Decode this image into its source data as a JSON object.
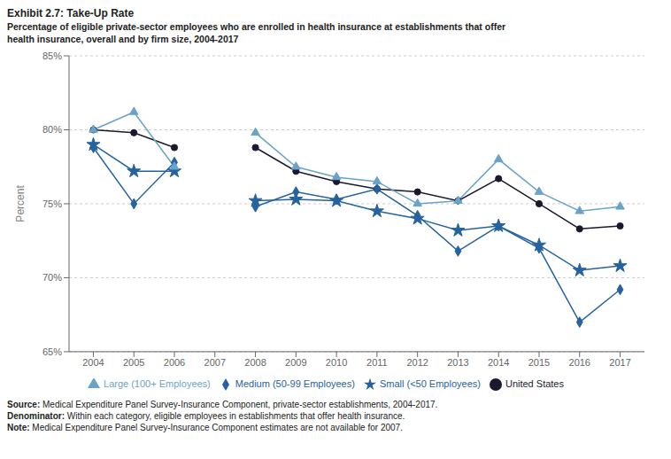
{
  "chart_data": {
    "type": "line",
    "title": "Exhibit 2.7: Take-Up Rate",
    "subtitle": [
      "Percentage of eligible private-sector employees who are enrolled in health insurance at establishments that offer",
      "health insurance, overall and by firm size, 2004-2017"
    ],
    "x": [
      2004,
      2005,
      2006,
      2007,
      2008,
      2009,
      2010,
      2011,
      2012,
      2013,
      2014,
      2015,
      2016,
      2017
    ],
    "series": [
      {
        "name": "United States",
        "color": "#1a1a2e",
        "marker": "circle",
        "values": [
          80.0,
          79.8,
          78.8,
          null,
          78.8,
          77.2,
          76.5,
          76.0,
          75.8,
          75.2,
          76.7,
          75.0,
          73.3,
          73.5
        ]
      },
      {
        "name": "Small (<50 Employees)",
        "color": "#2563a0",
        "marker": "star",
        "values": [
          79.0,
          77.2,
          77.2,
          null,
          75.2,
          75.3,
          75.2,
          74.5,
          74.0,
          73.2,
          73.5,
          72.2,
          70.5,
          70.8
        ]
      },
      {
        "name": "Medium (50-99 Employees)",
        "color": "#2563a0",
        "marker": "diamond",
        "values": [
          78.8,
          75.0,
          77.8,
          null,
          74.8,
          75.8,
          75.3,
          76.0,
          74.2,
          71.8,
          73.5,
          72.0,
          67.0,
          69.2
        ]
      },
      {
        "name": "Large (100+ Employees)",
        "color": "#6ba3c8",
        "marker": "triangle",
        "values": [
          80.0,
          81.2,
          77.5,
          null,
          79.8,
          77.5,
          76.8,
          76.5,
          75.0,
          75.2,
          78.0,
          75.8,
          74.5,
          74.8
        ]
      }
    ],
    "xlim": [
      2003.4,
      2017.6
    ],
    "xticks": [
      2004,
      2005,
      2006,
      2007,
      2008,
      2009,
      2010,
      2011,
      2012,
      2013,
      2014,
      2015,
      2016,
      2017
    ],
    "ylabel": "Percent",
    "ylim": [
      65,
      85
    ],
    "yticks": [
      {
        "value": 65,
        "label": "65%"
      },
      {
        "value": 70,
        "label": "70%"
      },
      {
        "value": 75,
        "label": "75%"
      },
      {
        "value": 80,
        "label": "80%"
      },
      {
        "value": 85,
        "label": "85%"
      }
    ],
    "grid": true,
    "legend": "bottom",
    "annotations": [
      "Source: Medical Expenditure Panel Survey-Insurance Component, private-sector establishments, 2004-2017.",
      "Denominator: Within each category, eligible employees in establishments that offer health insurance.",
      "Note: Medical Expenditure Panel Survey-Insurance Component estimates are not available for 2007."
    ]
  }
}
